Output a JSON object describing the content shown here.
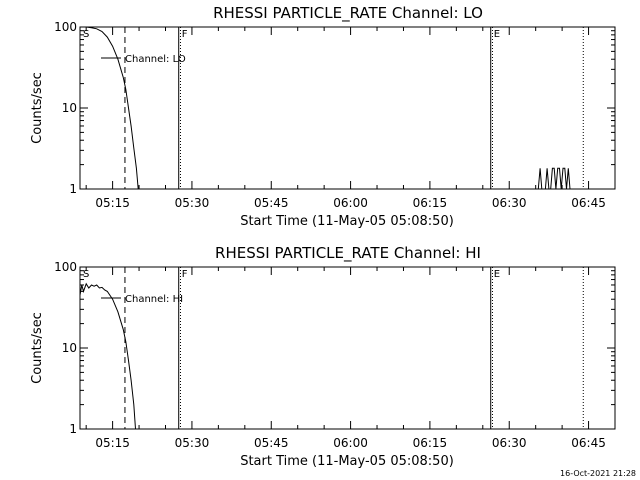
{
  "footer": {
    "timestamp": "16-Oct-2021 21:28"
  },
  "chart_data": [
    {
      "type": "line",
      "title": "RHESSI PARTICLE_RATE Channel: LO",
      "xlabel": "Start Time (11-May-05 05:08:50)",
      "ylabel": "Counts/sec",
      "yscale": "log",
      "ylim": [
        1,
        100
      ],
      "xlim": [
        "05:08:50",
        "06:50:00"
      ],
      "ytick_labels": [
        "1",
        "10",
        "100"
      ],
      "ytick_values": [
        1,
        10,
        100
      ],
      "xtick_labels": [
        "05:15",
        "05:30",
        "05:45",
        "06:00",
        "06:15",
        "06:30",
        "06:45"
      ],
      "legend": [
        {
          "label": "Channel: LO"
        }
      ],
      "markers": [
        {
          "label": "S",
          "time": "05:08:50",
          "style": "solid"
        },
        {
          "label": "",
          "time": "05:17:20",
          "style": "dashed"
        },
        {
          "label": "F",
          "time": "05:27:30",
          "style": "solid"
        },
        {
          "label": "",
          "time": "05:27:50",
          "style": "dotted"
        },
        {
          "label": "E",
          "time": "06:26:30",
          "style": "solid"
        },
        {
          "label": "",
          "time": "06:26:50",
          "style": "dotted"
        },
        {
          "label": "",
          "time": "06:44:00",
          "style": "dotted"
        }
      ],
      "series": [
        {
          "x": [
            "05:08:50",
            "05:10:00",
            "05:11:00",
            "05:12:00",
            "05:13:00",
            "05:14:00",
            "05:15:00",
            "05:16:00",
            "05:17:00",
            "05:17:30",
            "05:18:00",
            "05:18:30",
            "05:19:00",
            "05:19:30",
            "05:19:50"
          ],
          "y": [
            100,
            100,
            98,
            95,
            88,
            75,
            58,
            40,
            24,
            17,
            10,
            6,
            3.2,
            1.8,
            1
          ]
        },
        {
          "x": [
            "06:35:30",
            "06:35:50",
            "06:36:10",
            "06:36:30",
            "06:36:50",
            "06:37:10",
            "06:37:30",
            "06:37:50",
            "06:38:10",
            "06:38:30",
            "06:38:50",
            "06:39:10",
            "06:39:30",
            "06:39:50",
            "06:40:10",
            "06:40:30",
            "06:40:50",
            "06:41:10",
            "06:41:30"
          ],
          "y": [
            1,
            1.8,
            1,
            1,
            1,
            1.8,
            1,
            1,
            1.8,
            1.8,
            1,
            1.8,
            1.8,
            1,
            1.8,
            1.8,
            1,
            1.8,
            1
          ]
        }
      ]
    },
    {
      "type": "line",
      "title": "RHESSI PARTICLE_RATE Channel: HI",
      "xlabel": "Start Time (11-May-05 05:08:50)",
      "ylabel": "Counts/sec",
      "yscale": "log",
      "ylim": [
        1,
        100
      ],
      "xlim": [
        "05:08:50",
        "06:50:00"
      ],
      "ytick_labels": [
        "1",
        "10",
        "100"
      ],
      "ytick_values": [
        1,
        10,
        100
      ],
      "xtick_labels": [
        "05:15",
        "05:30",
        "05:45",
        "06:00",
        "06:15",
        "06:30",
        "06:45"
      ],
      "legend": [
        {
          "label": "Channel: HI"
        }
      ],
      "markers": [
        {
          "label": "S",
          "time": "05:08:50",
          "style": "solid"
        },
        {
          "label": "",
          "time": "05:17:20",
          "style": "dashed"
        },
        {
          "label": "F",
          "time": "05:27:30",
          "style": "solid"
        },
        {
          "label": "",
          "time": "05:27:50",
          "style": "dotted"
        },
        {
          "label": "E",
          "time": "06:26:30",
          "style": "solid"
        },
        {
          "label": "",
          "time": "06:26:50",
          "style": "dotted"
        },
        {
          "label": "",
          "time": "06:44:00",
          "style": "dotted"
        }
      ],
      "series": [
        {
          "x": [
            "05:08:50",
            "05:09:10",
            "05:09:30",
            "05:10:00",
            "05:10:30",
            "05:11:00",
            "05:11:30",
            "05:12:00",
            "05:12:30",
            "05:13:00",
            "05:13:30",
            "05:14:00",
            "05:15:00",
            "05:16:00",
            "05:17:00",
            "05:17:30",
            "05:18:00",
            "05:18:30",
            "05:19:00",
            "05:19:20"
          ],
          "y": [
            45,
            60,
            50,
            62,
            55,
            60,
            58,
            60,
            55,
            56,
            52,
            50,
            40,
            28,
            17,
            12,
            7,
            4,
            2,
            1
          ]
        }
      ]
    }
  ]
}
